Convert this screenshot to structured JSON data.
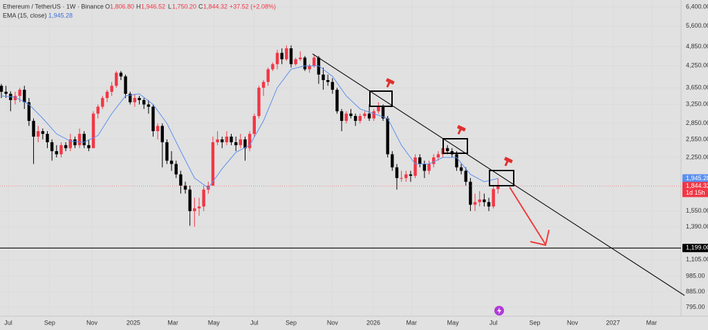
{
  "header": {
    "symbol": "Ethereum / TetherUS · 1W · Binance",
    "o_label": "O",
    "o": "1,806.80",
    "h_label": "H",
    "h": "1,946.52",
    "l_label": "L",
    "l": "1,750.20",
    "c_label": "C",
    "c": "1,844.32",
    "change": "+37.52 (+2.08%)",
    "ema_label": "EMA (15, close)",
    "ema_value": "1,945.28"
  },
  "chart_data": {
    "type": "candlestick",
    "log_scale": true,
    "up_color": "#f23645",
    "down_color": "#000000",
    "ylim": [
      747,
      6714
    ],
    "xlim": [
      -0.3,
      147.8
    ],
    "yticks": [
      {
        "value": 6400,
        "label": "6,400.00"
      },
      {
        "value": 5600,
        "label": "5,600.00"
      },
      {
        "value": 4850,
        "label": "4,850.00"
      },
      {
        "value": 4250,
        "label": "4,250.00"
      },
      {
        "value": 3650,
        "label": "3,650.00"
      },
      {
        "value": 3250,
        "label": "3,250.00"
      },
      {
        "value": 2850,
        "label": "2,850.00"
      },
      {
        "value": 2550,
        "label": "2,550.00"
      },
      {
        "value": 2250,
        "label": "2,250.00"
      },
      {
        "value": 1550,
        "label": "1,550.00"
      },
      {
        "value": 1390,
        "label": "1,390.00"
      },
      {
        "value": 1105,
        "label": "1,105.00"
      },
      {
        "value": 985,
        "label": "985.00"
      },
      {
        "value": 885,
        "label": "885.00"
      },
      {
        "value": 795,
        "label": "795.00"
      }
    ],
    "xticks": [
      {
        "value": 1.5,
        "label": "Jul"
      },
      {
        "value": 10.5,
        "label": "Sep"
      },
      {
        "value": 19.7,
        "label": "Nov"
      },
      {
        "value": 28.7,
        "label": "2025"
      },
      {
        "value": 37.3,
        "label": "Mar"
      },
      {
        "value": 46.2,
        "label": "May"
      },
      {
        "value": 55,
        "label": "Jul"
      },
      {
        "value": 63,
        "label": "Sep"
      },
      {
        "value": 72,
        "label": "Nov"
      },
      {
        "value": 80.9,
        "label": "2026"
      },
      {
        "value": 89.2,
        "label": "Mar"
      },
      {
        "value": 98.2,
        "label": "May"
      },
      {
        "value": 107,
        "label": "Jul"
      },
      {
        "value": 116,
        "label": "Sep"
      },
      {
        "value": 124.2,
        "label": "Nov"
      },
      {
        "value": 133,
        "label": "2027"
      },
      {
        "value": 141.4,
        "label": "Mar"
      }
    ],
    "x": [
      0,
      1,
      2,
      3,
      4,
      5,
      6,
      7,
      8,
      9,
      10,
      11,
      12,
      13,
      14,
      15,
      16,
      17,
      18,
      19,
      20,
      21,
      22,
      23,
      24,
      25,
      26,
      27,
      28,
      29,
      30,
      31,
      32,
      33,
      34,
      35,
      36,
      37,
      38,
      39,
      40,
      41,
      42,
      43,
      44,
      45,
      46,
      47,
      48,
      49,
      50,
      51,
      52,
      53,
      54,
      55,
      56,
      57,
      58,
      59,
      60,
      61,
      62,
      63,
      64,
      65,
      66,
      67,
      68,
      69,
      70,
      71,
      72,
      73,
      74,
      75,
      76,
      77,
      78,
      79,
      80,
      81,
      82,
      83,
      84,
      85,
      86,
      87,
      88,
      89,
      90,
      91,
      92,
      93,
      94,
      95,
      96,
      97,
      98,
      99,
      100,
      101,
      102,
      103,
      104,
      105,
      106,
      107,
      108
    ],
    "ohlc": [
      [
        3700,
        3750,
        3400,
        3550
      ],
      [
        3550,
        3700,
        3400,
        3500
      ],
      [
        3500,
        3560,
        3100,
        3350
      ],
      [
        3350,
        3550,
        3250,
        3450
      ],
      [
        3450,
        3650,
        3300,
        3600
      ],
      [
        3600,
        3700,
        3150,
        3300
      ],
      [
        3300,
        3400,
        2800,
        2900
      ],
      [
        2900,
        2950,
        2150,
        2600
      ],
      [
        2600,
        2800,
        2500,
        2700
      ],
      [
        2700,
        2750,
        2550,
        2650
      ],
      [
        2650,
        2700,
        2400,
        2500
      ],
      [
        2500,
        2550,
        2200,
        2350
      ],
      [
        2350,
        2450,
        2250,
        2300
      ],
      [
        2300,
        2500,
        2250,
        2450
      ],
      [
        2450,
        2500,
        2350,
        2400
      ],
      [
        2400,
        2650,
        2350,
        2550
      ],
      [
        2550,
        2600,
        2400,
        2450
      ],
      [
        2450,
        2750,
        2400,
        2650
      ],
      [
        2650,
        2700,
        2400,
        2450
      ],
      [
        2450,
        2550,
        2350,
        2400
      ],
      [
        2400,
        3100,
        2400,
        3050
      ],
      [
        3050,
        3250,
        2950,
        3200
      ],
      [
        3200,
        3450,
        3150,
        3400
      ],
      [
        3400,
        3600,
        3300,
        3550
      ],
      [
        3550,
        3800,
        3450,
        3700
      ],
      [
        3700,
        4100,
        3650,
        4050
      ],
      [
        4050,
        4100,
        3850,
        3950
      ],
      [
        3950,
        4000,
        3400,
        3500
      ],
      [
        3500,
        3550,
        3250,
        3300
      ],
      [
        3300,
        3500,
        3200,
        3400
      ],
      [
        3400,
        3450,
        3250,
        3350
      ],
      [
        3350,
        3400,
        3150,
        3250
      ],
      [
        3250,
        3350,
        3050,
        3200
      ],
      [
        3200,
        3250,
        2600,
        2700
      ],
      [
        2700,
        2850,
        2550,
        2800
      ],
      [
        2800,
        2850,
        2100,
        2500
      ],
      [
        2500,
        2550,
        2150,
        2200
      ],
      [
        2200,
        2350,
        2050,
        2150
      ],
      [
        2150,
        2200,
        1950,
        2000
      ],
      [
        2000,
        2050,
        1750,
        1850
      ],
      [
        1850,
        1900,
        1750,
        1800
      ],
      [
        1800,
        1850,
        1400,
        1550
      ],
      [
        1550,
        1700,
        1390,
        1580
      ],
      [
        1580,
        1700,
        1500,
        1600
      ],
      [
        1600,
        1850,
        1550,
        1800
      ],
      [
        1800,
        1900,
        1750,
        1850
      ],
      [
        1850,
        2600,
        1850,
        2500
      ],
      [
        2500,
        2700,
        2450,
        2550
      ],
      [
        2550,
        2600,
        2400,
        2500
      ],
      [
        2500,
        2700,
        2450,
        2600
      ],
      [
        2600,
        2650,
        2450,
        2500
      ],
      [
        2500,
        2600,
        2350,
        2450
      ],
      [
        2450,
        2650,
        2400,
        2550
      ],
      [
        2550,
        2600,
        2200,
        2400
      ],
      [
        2400,
        2700,
        2350,
        2650
      ],
      [
        2650,
        3050,
        2600,
        3000
      ],
      [
        3000,
        3700,
        2950,
        3650
      ],
      [
        3650,
        3850,
        3450,
        3800
      ],
      [
        3800,
        4200,
        3700,
        4150
      ],
      [
        4150,
        4350,
        4100,
        4300
      ],
      [
        4300,
        4750,
        4150,
        4650
      ],
      [
        4650,
        4800,
        4300,
        4450
      ],
      [
        4450,
        4900,
        4400,
        4800
      ],
      [
        4800,
        4900,
        4200,
        4300
      ],
      [
        4300,
        4500,
        4250,
        4450
      ],
      [
        4450,
        4700,
        4400,
        4500
      ],
      [
        4500,
        4550,
        4100,
        4150
      ],
      [
        4150,
        4300,
        4050,
        4250
      ],
      [
        4250,
        4600,
        4200,
        4500
      ],
      [
        4500,
        4550,
        3750,
        4000
      ],
      [
        4000,
        4200,
        3600,
        3850
      ],
      [
        3850,
        4000,
        3700,
        3800
      ],
      [
        3800,
        3900,
        3500,
        3600
      ],
      [
        3600,
        3650,
        3050,
        3100
      ],
      [
        3100,
        3150,
        2700,
        2900
      ],
      [
        2900,
        3100,
        2850,
        3050
      ],
      [
        3050,
        3150,
        2950,
        3000
      ],
      [
        3000,
        3050,
        2800,
        2900
      ],
      [
        2900,
        3050,
        2850,
        3000
      ],
      [
        3000,
        3100,
        2950,
        3050
      ],
      [
        3050,
        3250,
        2900,
        2950
      ],
      [
        2950,
        3150,
        2900,
        3100
      ],
      [
        3100,
        3300,
        3050,
        3200
      ],
      [
        3200,
        3250,
        2900,
        2950
      ],
      [
        2950,
        3000,
        2250,
        2300
      ],
      [
        2300,
        2350,
        2050,
        2100
      ],
      [
        2100,
        2150,
        1800,
        1950
      ],
      [
        1950,
        2050,
        1900,
        1950
      ],
      [
        1950,
        2050,
        1900,
        2000
      ],
      [
        2000,
        2050,
        1900,
        1980
      ],
      [
        1980,
        2300,
        1950,
        2250
      ],
      [
        2250,
        2300,
        2100,
        2150
      ],
      [
        2150,
        2200,
        1950,
        2050
      ],
      [
        2050,
        2200,
        2000,
        2150
      ],
      [
        2150,
        2300,
        2100,
        2250
      ],
      [
        2250,
        2350,
        2200,
        2300
      ],
      [
        2300,
        2450,
        2250,
        2400
      ],
      [
        2400,
        2450,
        2300,
        2350
      ],
      [
        2350,
        2400,
        2250,
        2300
      ],
      [
        2300,
        2350,
        2050,
        2100
      ],
      [
        2100,
        2150,
        2000,
        2050
      ],
      [
        2050,
        2100,
        1850,
        1900
      ],
      [
        1900,
        1950,
        1550,
        1620
      ],
      [
        1620,
        1750,
        1550,
        1650
      ],
      [
        1650,
        1780,
        1600,
        1680
      ],
      [
        1680,
        1750,
        1600,
        1650
      ],
      [
        1650,
        1700,
        1550,
        1600
      ],
      [
        1600,
        1850,
        1580,
        1806.8
      ],
      [
        1806.8,
        1946.52,
        1750.2,
        1844.32
      ]
    ],
    "ema": {
      "name": "EMA (15, close)",
      "color": "#5b8ff0",
      "x": [
        0,
        3,
        6,
        9,
        12,
        15,
        18,
        21,
        24,
        27,
        30,
        33,
        36,
        39,
        42,
        45,
        48,
        51,
        54,
        57,
        60,
        63,
        66,
        69,
        72,
        75,
        78,
        81,
        84,
        87,
        90,
        93,
        96,
        99,
        102,
        105,
        108
      ],
      "values": [
        3450,
        3420,
        3250,
        2950,
        2650,
        2520,
        2500,
        2620,
        3050,
        3450,
        3500,
        3250,
        2850,
        2350,
        1950,
        1820,
        2080,
        2330,
        2450,
        2900,
        3650,
        4150,
        4250,
        4250,
        3950,
        3450,
        3150,
        3050,
        2950,
        2450,
        2150,
        2150,
        2250,
        2250,
        2000,
        1900,
        1945.28
      ]
    },
    "ema_tag": {
      "value": 1945.28,
      "label": "1,945.28",
      "color": "#5b8ff0"
    },
    "price_tag": {
      "value": 1844.32,
      "label": "1,844.32",
      "countdown": "1d 15h",
      "color": "#f23645"
    },
    "hline": {
      "value": 1199,
      "label": "1,199.00",
      "color": "#000000"
    }
  }
}
